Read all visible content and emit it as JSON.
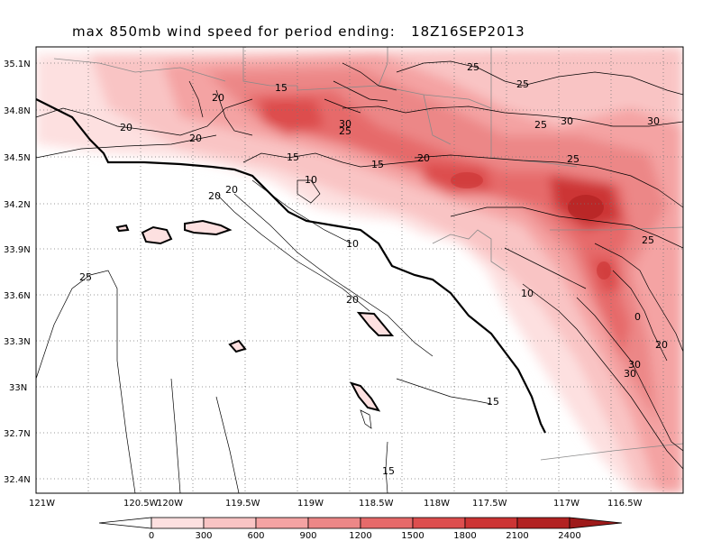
{
  "title": {
    "prefix": "max 850mb wind speed for period ending:",
    "time": "18Z16SEP2013"
  },
  "latitude_labels": [
    "35.1N",
    "34.8N",
    "34.5N",
    "34.2N",
    "33.9N",
    "33.6N",
    "33.3N",
    "33N",
    "32.7N",
    "32.4N"
  ],
  "longitude_labels": [
    "121W",
    "120.5W",
    "120W",
    "119.5W",
    "119W",
    "118.5W",
    "118W",
    "117.5W",
    "117W",
    "116.5W"
  ],
  "colorbar": {
    "labels": [
      "0",
      "300",
      "600",
      "900",
      "1200",
      "1500",
      "1800",
      "2100",
      "2400"
    ],
    "colors": [
      "#ffffff",
      "#fde0e0",
      "#f9c4c4",
      "#f4a3a3",
      "#ec8787",
      "#e66a6a",
      "#dd4e4e",
      "#cc3434",
      "#b22222",
      "#9e1a1a"
    ]
  },
  "contour_labels": [
    "15",
    "20",
    "25",
    "25",
    "30",
    "25",
    "25",
    "30",
    "30",
    "20",
    "20",
    "15",
    "15",
    "20",
    "25",
    "10",
    "20",
    "20",
    "10",
    "25",
    "10",
    "20",
    "0",
    "20",
    "30",
    "30",
    "15",
    "15",
    "25"
  ]
}
